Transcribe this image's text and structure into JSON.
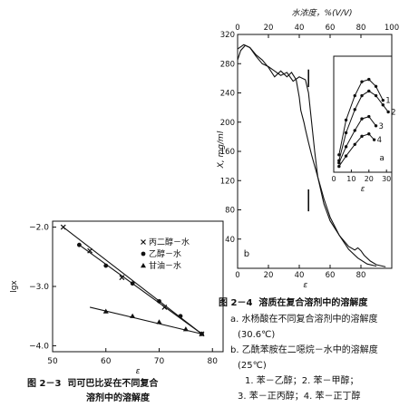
{
  "chart_data": [
    {
      "type": "scatter",
      "figure_label": "图 2－3",
      "caption_line1": "司可巴比妥在不同复合",
      "caption_line2": "溶剂中的溶解度",
      "xlabel": "ε",
      "ylabel": "lgx",
      "xlim": [
        50,
        82
      ],
      "ylim": [
        -4.1,
        -1.9
      ],
      "xticks": [
        50,
        60,
        70,
        80
      ],
      "yticks": [
        -2.0,
        -3.0,
        -4.0
      ],
      "ytick_labels": [
        "−2.0",
        "−3.0",
        "−4.0"
      ],
      "legend_position": "top-right",
      "series": [
        {
          "name": "丙二醇－水",
          "marker": "x",
          "x": [
            52,
            57,
            63,
            71,
            78
          ],
          "y": [
            -2.0,
            -2.4,
            -2.85,
            -3.35,
            -3.8
          ]
        },
        {
          "name": "乙醇－水",
          "marker": "o",
          "x": [
            55,
            60,
            65,
            70,
            74,
            78
          ],
          "y": [
            -2.3,
            -2.65,
            -2.95,
            -3.25,
            -3.5,
            -3.8
          ]
        },
        {
          "name": "甘油－水",
          "marker": "triangle",
          "x": [
            60,
            65,
            70,
            75,
            78
          ],
          "y": [
            -3.42,
            -3.5,
            -3.6,
            -3.72,
            -3.8
          ]
        }
      ],
      "fit_lines": [
        {
          "x": [
            52,
            78
          ],
          "y": [
            -2.0,
            -3.8
          ]
        },
        {
          "x": [
            55,
            78
          ],
          "y": [
            -2.3,
            -3.8
          ]
        },
        {
          "x": [
            57,
            78
          ],
          "y": [
            -3.35,
            -3.8
          ]
        }
      ]
    },
    {
      "type": "line",
      "figure_label": "图 2－4",
      "title": "溶质在复合溶剂中的溶解度",
      "panel_label": "b",
      "xlabel": "ε",
      "ylabel": "X, mg/ml",
      "top_axis_label": "水浓度，%(V/V)",
      "top_ticks": [
        0,
        20,
        40,
        60,
        80,
        100
      ],
      "xlim": [
        0,
        100
      ],
      "ylim": [
        0,
        320
      ],
      "xticks": [
        0,
        20,
        40,
        60,
        80
      ],
      "yticks": [
        40,
        80,
        120,
        160,
        200,
        240,
        280,
        320
      ],
      "series": [
        {
          "x": [
            0,
            2,
            5,
            8,
            12,
            16,
            20,
            24,
            28,
            32,
            35,
            38,
            40,
            41,
            42,
            43,
            44,
            46,
            48,
            52,
            56,
            60,
            66,
            72,
            78,
            84,
            90
          ],
          "y": [
            285,
            298,
            305,
            302,
            292,
            285,
            275,
            262,
            270,
            262,
            268,
            258,
            234,
            216,
            208,
            200,
            190,
            172,
            155,
            125,
            95,
            70,
            45,
            26,
            14,
            6,
            3
          ]
        },
        {
          "x": [
            0,
            4,
            8,
            12,
            16,
            20,
            24,
            28,
            32,
            36,
            40,
            44,
            46,
            48,
            50,
            52,
            56,
            60,
            66,
            72,
            76,
            78,
            80,
            82,
            86,
            90,
            96
          ],
          "y": [
            300,
            306,
            302,
            290,
            280,
            276,
            270,
            264,
            268,
            256,
            262,
            258,
            240,
            200,
            160,
            125,
            88,
            65,
            45,
            30,
            25,
            28,
            24,
            18,
            10,
            5,
            2
          ]
        }
      ]
    },
    {
      "type": "line",
      "panel_label": "a",
      "xlabel": "ε",
      "xlim": [
        0,
        33
      ],
      "xticks": [
        0,
        10,
        20,
        30
      ],
      "series": [
        {
          "name": "1",
          "x": [
            3,
            7,
            12,
            16,
            20,
            24,
            28
          ],
          "y": [
            0.15,
            0.45,
            0.66,
            0.78,
            0.8,
            0.74,
            0.62
          ]
        },
        {
          "name": "2",
          "x": [
            3,
            7,
            12,
            16,
            20,
            24,
            28,
            31
          ],
          "y": [
            0.1,
            0.34,
            0.54,
            0.66,
            0.7,
            0.66,
            0.58,
            0.52
          ]
        },
        {
          "name": "3",
          "x": [
            3,
            7,
            12,
            16,
            20,
            24
          ],
          "y": [
            0.08,
            0.22,
            0.36,
            0.46,
            0.48,
            0.4
          ]
        },
        {
          "name": "4",
          "x": [
            3,
            7,
            12,
            16,
            20,
            23
          ],
          "y": [
            0.05,
            0.14,
            0.24,
            0.31,
            0.33,
            0.28
          ]
        }
      ]
    }
  ],
  "captions": {
    "fig24_a1": "a. 水杨酸在不同复合溶剂中的溶解度",
    "fig24_a2": "(30.6℃)",
    "fig24_b1": "b. 乙酰苯胺在二噁烷－水中的溶解度",
    "fig24_b2": "(25℃)",
    "fig24_k1": "1. 苯－乙醇；2. 苯－甲醇；",
    "fig24_k2": "3. 苯－正丙醇；4. 苯－正丁醇"
  }
}
